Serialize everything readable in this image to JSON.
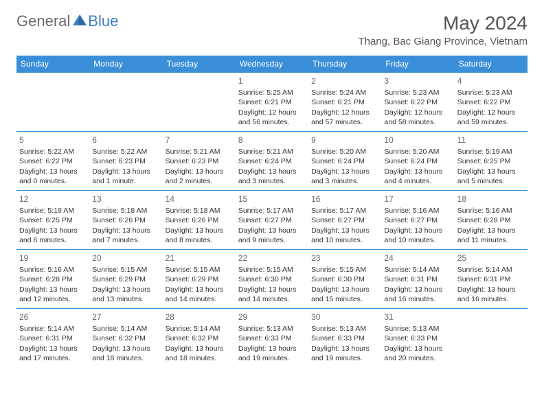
{
  "logo": {
    "textGray": "General",
    "textBlue": "Blue"
  },
  "title": "May 2024",
  "location": "Thang, Bac Giang Province, Vietnam",
  "colors": {
    "headerBlue": "#3a8fd8",
    "logoBlue": "#3a7fc4",
    "logoGray": "#6a6a6a",
    "textDark": "#333333",
    "titleGray": "#555555",
    "background": "#ffffff"
  },
  "dayHeaders": [
    "Sunday",
    "Monday",
    "Tuesday",
    "Wednesday",
    "Thursday",
    "Friday",
    "Saturday"
  ],
  "weeks": [
    [
      null,
      null,
      null,
      {
        "n": "1",
        "sr": "5:25 AM",
        "ss": "6:21 PM",
        "dl": "12 hours and 56 minutes."
      },
      {
        "n": "2",
        "sr": "5:24 AM",
        "ss": "6:21 PM",
        "dl": "12 hours and 57 minutes."
      },
      {
        "n": "3",
        "sr": "5:23 AM",
        "ss": "6:22 PM",
        "dl": "12 hours and 58 minutes."
      },
      {
        "n": "4",
        "sr": "5:23 AM",
        "ss": "6:22 PM",
        "dl": "12 hours and 59 minutes."
      }
    ],
    [
      {
        "n": "5",
        "sr": "5:22 AM",
        "ss": "6:22 PM",
        "dl": "13 hours and 0 minutes."
      },
      {
        "n": "6",
        "sr": "5:22 AM",
        "ss": "6:23 PM",
        "dl": "13 hours and 1 minute."
      },
      {
        "n": "7",
        "sr": "5:21 AM",
        "ss": "6:23 PM",
        "dl": "13 hours and 2 minutes."
      },
      {
        "n": "8",
        "sr": "5:21 AM",
        "ss": "6:24 PM",
        "dl": "13 hours and 3 minutes."
      },
      {
        "n": "9",
        "sr": "5:20 AM",
        "ss": "6:24 PM",
        "dl": "13 hours and 3 minutes."
      },
      {
        "n": "10",
        "sr": "5:20 AM",
        "ss": "6:24 PM",
        "dl": "13 hours and 4 minutes."
      },
      {
        "n": "11",
        "sr": "5:19 AM",
        "ss": "6:25 PM",
        "dl": "13 hours and 5 minutes."
      }
    ],
    [
      {
        "n": "12",
        "sr": "5:19 AM",
        "ss": "6:25 PM",
        "dl": "13 hours and 6 minutes."
      },
      {
        "n": "13",
        "sr": "5:18 AM",
        "ss": "6:26 PM",
        "dl": "13 hours and 7 minutes."
      },
      {
        "n": "14",
        "sr": "5:18 AM",
        "ss": "6:26 PM",
        "dl": "13 hours and 8 minutes."
      },
      {
        "n": "15",
        "sr": "5:17 AM",
        "ss": "6:27 PM",
        "dl": "13 hours and 9 minutes."
      },
      {
        "n": "16",
        "sr": "5:17 AM",
        "ss": "6:27 PM",
        "dl": "13 hours and 10 minutes."
      },
      {
        "n": "17",
        "sr": "5:16 AM",
        "ss": "6:27 PM",
        "dl": "13 hours and 10 minutes."
      },
      {
        "n": "18",
        "sr": "5:16 AM",
        "ss": "6:28 PM",
        "dl": "13 hours and 11 minutes."
      }
    ],
    [
      {
        "n": "19",
        "sr": "5:16 AM",
        "ss": "6:28 PM",
        "dl": "13 hours and 12 minutes."
      },
      {
        "n": "20",
        "sr": "5:15 AM",
        "ss": "6:29 PM",
        "dl": "13 hours and 13 minutes."
      },
      {
        "n": "21",
        "sr": "5:15 AM",
        "ss": "6:29 PM",
        "dl": "13 hours and 14 minutes."
      },
      {
        "n": "22",
        "sr": "5:15 AM",
        "ss": "6:30 PM",
        "dl": "13 hours and 14 minutes."
      },
      {
        "n": "23",
        "sr": "5:15 AM",
        "ss": "6:30 PM",
        "dl": "13 hours and 15 minutes."
      },
      {
        "n": "24",
        "sr": "5:14 AM",
        "ss": "6:31 PM",
        "dl": "13 hours and 16 minutes."
      },
      {
        "n": "25",
        "sr": "5:14 AM",
        "ss": "6:31 PM",
        "dl": "13 hours and 16 minutes."
      }
    ],
    [
      {
        "n": "26",
        "sr": "5:14 AM",
        "ss": "6:31 PM",
        "dl": "13 hours and 17 minutes."
      },
      {
        "n": "27",
        "sr": "5:14 AM",
        "ss": "6:32 PM",
        "dl": "13 hours and 18 minutes."
      },
      {
        "n": "28",
        "sr": "5:14 AM",
        "ss": "6:32 PM",
        "dl": "13 hours and 18 minutes."
      },
      {
        "n": "29",
        "sr": "5:13 AM",
        "ss": "6:33 PM",
        "dl": "13 hours and 19 minutes."
      },
      {
        "n": "30",
        "sr": "5:13 AM",
        "ss": "6:33 PM",
        "dl": "13 hours and 19 minutes."
      },
      {
        "n": "31",
        "sr": "5:13 AM",
        "ss": "6:33 PM",
        "dl": "13 hours and 20 minutes."
      },
      null
    ]
  ],
  "labels": {
    "sunrise": "Sunrise: ",
    "sunset": "Sunset: ",
    "daylight": "Daylight: "
  }
}
